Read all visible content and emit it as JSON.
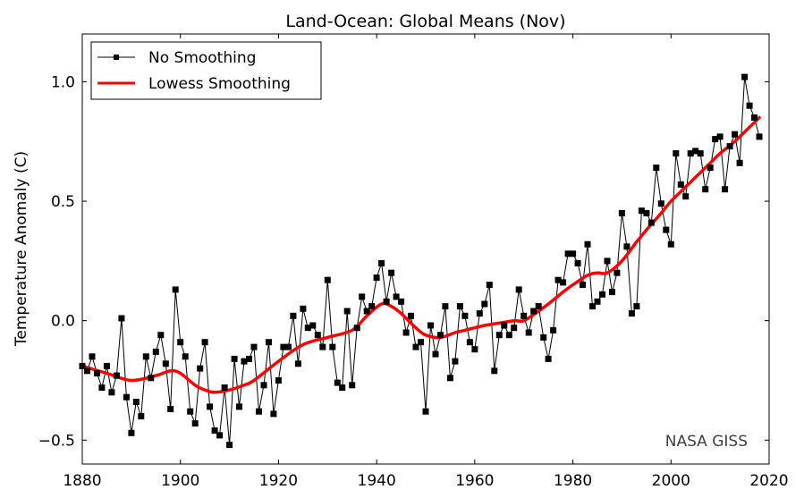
{
  "chart_data": {
    "type": "line",
    "title": "Land-Ocean: Global Means (Nov)",
    "xlabel": "",
    "ylabel": "Temperature Anomaly (C)",
    "xlim": [
      1880,
      2020
    ],
    "ylim": [
      -0.6,
      1.2
    ],
    "xticks": [
      1880,
      1900,
      1920,
      1940,
      1960,
      1980,
      2000,
      2020
    ],
    "xtick_labels": [
      "1880",
      "1900",
      "1920",
      "1940",
      "1960",
      "1980",
      "2000",
      "2020"
    ],
    "yticks": [
      -0.5,
      0.0,
      0.5,
      1.0
    ],
    "ytick_labels": [
      "−0.5",
      "0.0",
      "0.5",
      "1.0"
    ],
    "grid": false,
    "legend_position": "top-left",
    "annotation": "NASA GISS",
    "colors": {
      "raw": "#000000",
      "smooth": "#ff0000",
      "annotation": "#404040"
    },
    "series": [
      {
        "name": "No Smoothing",
        "style": "black line with square markers",
        "x": [
          1880,
          1881,
          1882,
          1883,
          1884,
          1885,
          1886,
          1887,
          1888,
          1889,
          1890,
          1891,
          1892,
          1893,
          1894,
          1895,
          1896,
          1897,
          1898,
          1899,
          1900,
          1901,
          1902,
          1903,
          1904,
          1905,
          1906,
          1907,
          1908,
          1909,
          1910,
          1911,
          1912,
          1913,
          1914,
          1915,
          1916,
          1917,
          1918,
          1919,
          1920,
          1921,
          1922,
          1923,
          1924,
          1925,
          1926,
          1927,
          1928,
          1929,
          1930,
          1931,
          1932,
          1933,
          1934,
          1935,
          1936,
          1937,
          1938,
          1939,
          1940,
          1941,
          1942,
          1943,
          1944,
          1945,
          1946,
          1947,
          1948,
          1949,
          1950,
          1951,
          1952,
          1953,
          1954,
          1955,
          1956,
          1957,
          1958,
          1959,
          1960,
          1961,
          1962,
          1963,
          1964,
          1965,
          1966,
          1967,
          1968,
          1969,
          1970,
          1971,
          1972,
          1973,
          1974,
          1975,
          1976,
          1977,
          1978,
          1979,
          1980,
          1981,
          1982,
          1983,
          1984,
          1985,
          1986,
          1987,
          1988,
          1989,
          1990,
          1991,
          1992,
          1993,
          1994,
          1995,
          1996,
          1997,
          1998,
          1999,
          2000,
          2001,
          2002,
          2003,
          2004,
          2005,
          2006,
          2007,
          2008,
          2009,
          2010,
          2011,
          2012,
          2013,
          2014,
          2015,
          2016,
          2017,
          2018
        ],
        "values": [
          -0.19,
          -0.21,
          -0.15,
          -0.22,
          -0.28,
          -0.19,
          -0.3,
          -0.23,
          0.01,
          -0.32,
          -0.47,
          -0.34,
          -0.4,
          -0.15,
          -0.24,
          -0.13,
          -0.06,
          -0.18,
          -0.37,
          0.13,
          -0.09,
          -0.15,
          -0.38,
          -0.43,
          -0.2,
          -0.09,
          -0.36,
          -0.46,
          -0.48,
          -0.28,
          -0.52,
          -0.16,
          -0.36,
          -0.17,
          -0.16,
          -0.11,
          -0.38,
          -0.27,
          -0.09,
          -0.39,
          -0.25,
          -0.11,
          -0.11,
          0.02,
          -0.18,
          0.05,
          -0.03,
          -0.02,
          -0.06,
          -0.11,
          0.17,
          -0.11,
          -0.26,
          -0.28,
          0.04,
          -0.27,
          -0.03,
          0.1,
          0.04,
          0.06,
          0.18,
          0.24,
          0.08,
          0.2,
          0.1,
          0.08,
          -0.05,
          0.02,
          -0.11,
          -0.09,
          -0.38,
          -0.02,
          -0.14,
          -0.06,
          0.06,
          -0.24,
          -0.17,
          0.06,
          0.02,
          -0.09,
          -0.12,
          0.03,
          0.07,
          0.15,
          -0.21,
          -0.06,
          -0.02,
          -0.06,
          -0.03,
          0.13,
          0.02,
          -0.05,
          0.04,
          0.06,
          -0.07,
          -0.16,
          -0.04,
          0.17,
          0.16,
          0.28,
          0.28,
          0.24,
          0.15,
          0.32,
          0.06,
          0.08,
          0.11,
          0.25,
          0.12,
          0.2,
          0.45,
          0.31,
          0.03,
          0.06,
          0.46,
          0.45,
          0.41,
          0.64,
          0.49,
          0.38,
          0.32,
          0.7,
          0.57,
          0.52,
          0.7,
          0.71,
          0.7,
          0.55,
          0.64,
          0.76,
          0.77,
          0.55,
          0.73,
          0.78,
          0.66,
          1.02,
          0.9,
          0.85,
          0.77
        ]
      },
      {
        "name": "Lowess Smoothing",
        "style": "thick red line",
        "x": [
          1880,
          1885,
          1890,
          1895,
          1898,
          1900,
          1903,
          1905,
          1907,
          1910,
          1913,
          1915,
          1920,
          1925,
          1930,
          1935,
          1938,
          1941,
          1943,
          1945,
          1948,
          1950,
          1953,
          1956,
          1958,
          1962,
          1965,
          1968,
          1970,
          1973,
          1975,
          1978,
          1980,
          1983,
          1985,
          1987,
          1990,
          1993,
          1995,
          1998,
          2000,
          2003,
          2005,
          2008,
          2010,
          2013,
          2015,
          2018
        ],
        "values": [
          -0.19,
          -0.22,
          -0.25,
          -0.23,
          -0.21,
          -0.22,
          -0.27,
          -0.29,
          -0.3,
          -0.29,
          -0.27,
          -0.25,
          -0.17,
          -0.1,
          -0.07,
          -0.04,
          0.02,
          0.07,
          0.06,
          0.03,
          -0.03,
          -0.06,
          -0.07,
          -0.05,
          -0.04,
          -0.02,
          -0.01,
          0.0,
          0.0,
          0.04,
          0.07,
          0.12,
          0.15,
          0.19,
          0.2,
          0.2,
          0.25,
          0.33,
          0.38,
          0.45,
          0.5,
          0.56,
          0.6,
          0.66,
          0.7,
          0.75,
          0.79,
          0.85
        ]
      }
    ]
  }
}
